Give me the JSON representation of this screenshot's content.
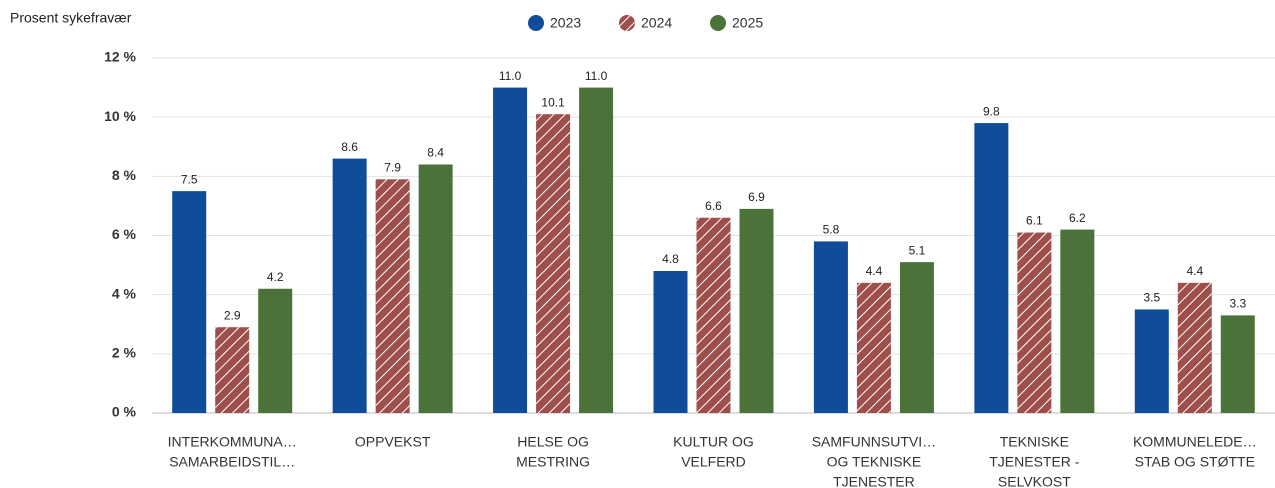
{
  "chart_data": {
    "type": "bar",
    "y_axis_title": "Prosent sykefravær",
    "categories": [
      [
        "INTERKOMMUNA…",
        "SAMARBEIDSTIL…"
      ],
      [
        "OPPVEKST"
      ],
      [
        "HELSE OG",
        "MESTRING"
      ],
      [
        "KULTUR OG",
        "VELFERD"
      ],
      [
        "SAMFUNNSUTVI…",
        "OG TEKNISKE",
        "TJENESTER"
      ],
      [
        "TEKNISKE",
        "TJENESTER -",
        "SELVKOST"
      ],
      [
        "KOMMUNELEDE…",
        "STAB OG STØTTE"
      ]
    ],
    "series": [
      {
        "name": "2023",
        "color": "#0f4c9a",
        "hatch": false,
        "values": [
          7.5,
          8.6,
          11.0,
          4.8,
          5.8,
          9.8,
          3.5
        ],
        "value_labels": [
          "7.5",
          "8.6",
          "11.0",
          "4.8",
          "5.8",
          "9.8",
          "3.5"
        ]
      },
      {
        "name": "2024",
        "color": "#9e4e4b",
        "hatch": true,
        "values": [
          2.9,
          7.9,
          10.1,
          6.6,
          4.4,
          6.1,
          4.4
        ],
        "value_labels": [
          "2.9",
          "7.9",
          "10.1",
          "6.6",
          "4.4",
          "6.1",
          "4.4"
        ]
      },
      {
        "name": "2025",
        "color": "#4b7339",
        "hatch": false,
        "values": [
          4.2,
          8.4,
          11.0,
          6.9,
          5.1,
          6.2,
          3.3
        ],
        "value_labels": [
          "4.2",
          "8.4",
          "11.0",
          "6.9",
          "5.1",
          "6.2",
          "3.3"
        ]
      }
    ],
    "ylim": [
      0,
      12
    ],
    "yticks": [
      {
        "value": 0,
        "label": "0 %"
      },
      {
        "value": 2,
        "label": "2 %"
      },
      {
        "value": 4,
        "label": "4 %"
      },
      {
        "value": 6,
        "label": "6 %"
      },
      {
        "value": 8,
        "label": "8 %"
      },
      {
        "value": 10,
        "label": "10 %"
      },
      {
        "value": 12,
        "label": "12 %"
      }
    ],
    "grid": true,
    "legend": "top"
  }
}
